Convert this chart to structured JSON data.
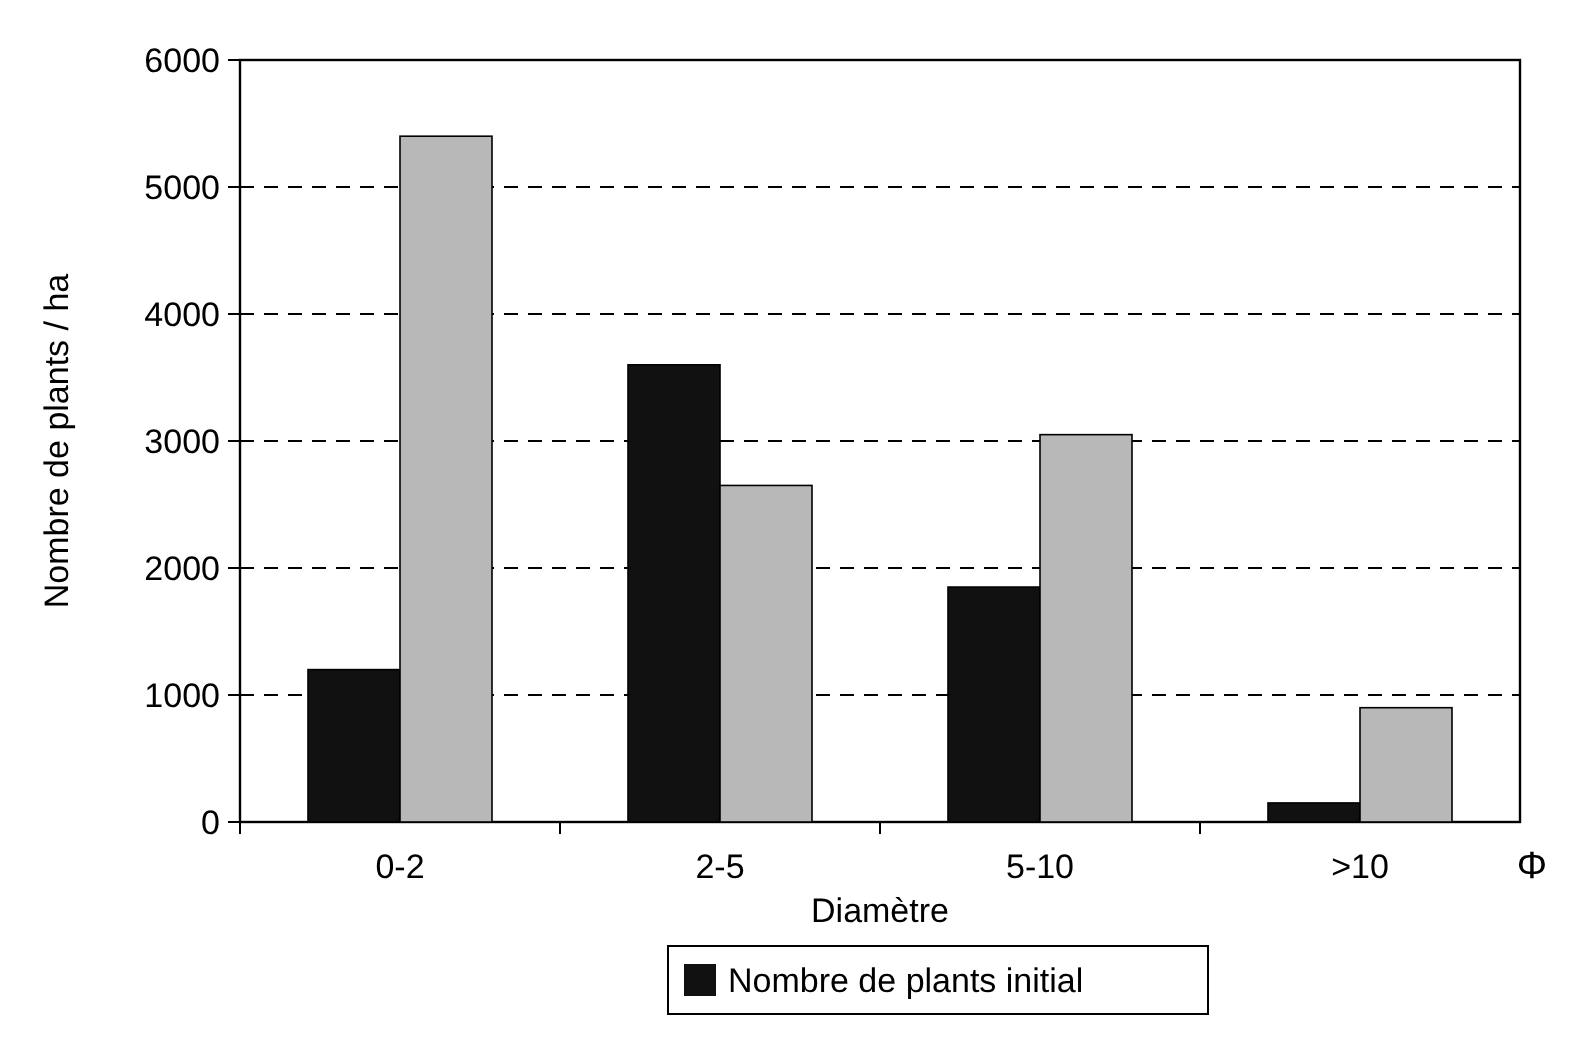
{
  "chart_data": {
    "type": "bar",
    "xlabel": "Diamètre",
    "ylabel": "Nombre de plants / ha",
    "categories": [
      "0-2",
      "2-5",
      "5-10",
      ">10"
    ],
    "series": [
      {
        "name": "Nombre de plants initial",
        "color": "#111111",
        "values": [
          1200,
          3600,
          1850,
          150
        ]
      },
      {
        "color": "#b8b8b8",
        "values": [
          5400,
          2650,
          3050,
          900
        ]
      }
    ],
    "ylim": [
      0,
      6000
    ],
    "yticks": [
      0,
      1000,
      2000,
      3000,
      4000,
      5000,
      6000
    ],
    "grid": "y",
    "legend": "bottom",
    "annotations": [
      "Φ"
    ]
  }
}
